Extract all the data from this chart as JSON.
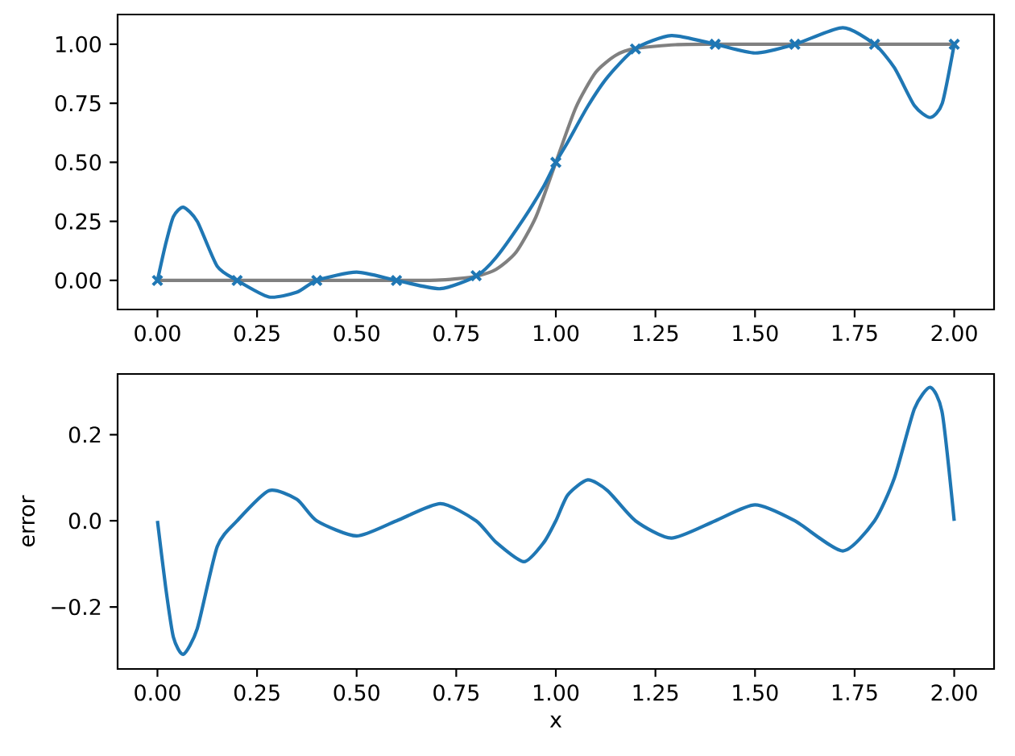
{
  "chart_data": [
    {
      "type": "line",
      "xlim": [
        -0.1,
        2.1
      ],
      "ylim": [
        -0.123,
        1.126
      ],
      "xticks": [
        {
          "value": 0,
          "label": "0.00"
        },
        {
          "value": 0.25,
          "label": "0.25"
        },
        {
          "value": 0.5,
          "label": "0.50"
        },
        {
          "value": 0.75,
          "label": "0.75"
        },
        {
          "value": 1,
          "label": "1.00"
        },
        {
          "value": 1.25,
          "label": "1.25"
        },
        {
          "value": 1.5,
          "label": "1.50"
        },
        {
          "value": 1.75,
          "label": "1.75"
        },
        {
          "value": 2,
          "label": "2.00"
        }
      ],
      "yticks": [
        {
          "value": 0,
          "label": "0.00"
        },
        {
          "value": 0.25,
          "label": "0.25"
        },
        {
          "value": 0.5,
          "label": "0.50"
        },
        {
          "value": 0.75,
          "label": "0.75"
        },
        {
          "value": 1,
          "label": "1.00"
        }
      ],
      "series": [
        {
          "color": "#808080",
          "x": [
            0,
            0.6,
            0.7,
            0.75,
            0.8,
            0.85,
            0.9,
            0.95,
            1.0,
            1.05,
            1.1,
            1.15,
            1.2,
            1.3,
            1.4,
            2.0
          ],
          "values": [
            0,
            0,
            0.001,
            0.007,
            0.018,
            0.047,
            0.119,
            0.269,
            0.5,
            0.731,
            0.881,
            0.953,
            0.982,
            0.998,
            1,
            1
          ]
        },
        {
          "color": "#1f77b4",
          "x": [
            0,
            0.02,
            0.04,
            0.065,
            0.1,
            0.15,
            0.2,
            0.28,
            0.35,
            0.4,
            0.5,
            0.6,
            0.71,
            0.8,
            0.85,
            0.92,
            0.97,
            1.0,
            1.03,
            1.08,
            1.13,
            1.2,
            1.29,
            1.4,
            1.5,
            1.6,
            1.72,
            1.8,
            1.85,
            1.9,
            1.94,
            1.97,
            2.0
          ],
          "values": [
            0,
            0.15,
            0.27,
            0.31,
            0.25,
            0.06,
            0,
            -0.07,
            -0.05,
            0,
            0.035,
            0,
            -0.035,
            0.018,
            0.097,
            0.263,
            0.4,
            0.5,
            0.586,
            0.737,
            0.861,
            0.982,
            1.037,
            1.0,
            0.963,
            1.0,
            1.07,
            1.0,
            0.9,
            0.74,
            0.69,
            0.75,
            1.0
          ]
        },
        {
          "type": "scatter",
          "marker": "cross",
          "color": "#1f77b4",
          "x": [
            0,
            0.2,
            0.4,
            0.6,
            0.8,
            1.0,
            1.2,
            1.4,
            1.6,
            1.8,
            2.0
          ],
          "values": [
            0,
            0,
            0,
            0,
            0.02,
            0.5,
            0.98,
            1,
            1,
            1,
            1
          ]
        }
      ]
    },
    {
      "type": "line",
      "xlabel": "x",
      "ylabel": "error",
      "xlim": [
        -0.1,
        2.1
      ],
      "ylim": [
        -0.344,
        0.341
      ],
      "xticks": [
        {
          "value": 0,
          "label": "0.00"
        },
        {
          "value": 0.25,
          "label": "0.25"
        },
        {
          "value": 0.5,
          "label": "0.50"
        },
        {
          "value": 0.75,
          "label": "0.75"
        },
        {
          "value": 1,
          "label": "1.00"
        },
        {
          "value": 1.25,
          "label": "1.25"
        },
        {
          "value": 1.5,
          "label": "1.50"
        },
        {
          "value": 1.75,
          "label": "1.75"
        },
        {
          "value": 2,
          "label": "2.00"
        }
      ],
      "yticks": [
        {
          "value": -0.2,
          "label": "−0.2"
        },
        {
          "value": 0,
          "label": "0.0"
        },
        {
          "value": 0.2,
          "label": "0.2"
        }
      ],
      "series": [
        {
          "color": "#1f77b4",
          "x": [
            0,
            0.02,
            0.04,
            0.065,
            0.1,
            0.15,
            0.2,
            0.28,
            0.35,
            0.4,
            0.5,
            0.6,
            0.71,
            0.8,
            0.85,
            0.92,
            0.97,
            1.0,
            1.03,
            1.08,
            1.13,
            1.2,
            1.29,
            1.4,
            1.5,
            1.6,
            1.72,
            1.8,
            1.85,
            1.9,
            1.94,
            1.97,
            2.0
          ],
          "values": [
            0,
            -0.15,
            -0.27,
            -0.31,
            -0.25,
            -0.06,
            0,
            0.07,
            0.05,
            0,
            -0.035,
            0,
            0.04,
            0,
            -0.05,
            -0.095,
            -0.05,
            0,
            0.06,
            0.095,
            0.07,
            0,
            -0.04,
            0,
            0.037,
            0,
            -0.07,
            0,
            0.1,
            0.26,
            0.31,
            0.25,
            0
          ]
        }
      ]
    }
  ]
}
